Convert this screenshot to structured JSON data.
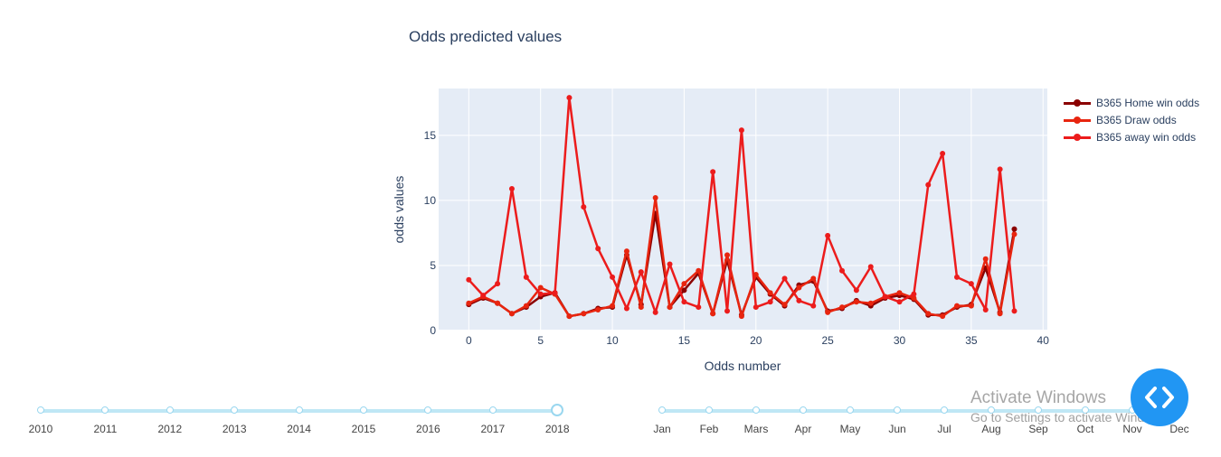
{
  "chart_data": {
    "type": "line",
    "title": "Odds predicted values",
    "xlabel": "Odds number",
    "ylabel": "odds values",
    "xlim": [
      -2.1,
      40.3
    ],
    "ylim": [
      0,
      18.6
    ],
    "xticks": [
      0,
      5,
      10,
      15,
      20,
      25,
      30,
      35,
      40
    ],
    "yticks": [
      0,
      5,
      10,
      15
    ],
    "grid": true,
    "legend_position": "right",
    "x": [
      0,
      1,
      2,
      3,
      4,
      5,
      6,
      7,
      8,
      9,
      10,
      11,
      12,
      13,
      14,
      15,
      16,
      17,
      18,
      19,
      20,
      21,
      22,
      23,
      24,
      25,
      26,
      27,
      28,
      29,
      30,
      31,
      32,
      33,
      34,
      35,
      36,
      37,
      38
    ],
    "series": [
      {
        "name": "B365 Home win odds",
        "color": "#8b0000",
        "values": [
          2.0,
          2.5,
          2.1,
          1.3,
          1.8,
          2.6,
          2.9,
          1.1,
          1.3,
          1.7,
          1.8,
          5.8,
          2.0,
          9.0,
          1.8,
          3.1,
          4.4,
          1.3,
          5.4,
          1.2,
          4.1,
          2.8,
          1.9,
          3.5,
          3.8,
          1.5,
          1.7,
          2.3,
          1.9,
          2.5,
          2.7,
          2.4,
          1.2,
          1.2,
          1.8,
          2.0,
          4.8,
          1.4,
          7.8
        ]
      },
      {
        "name": "B365 Draw odds",
        "color": "#e8250f",
        "values": [
          2.1,
          2.6,
          2.1,
          1.3,
          1.9,
          3.3,
          2.8,
          1.1,
          1.3,
          1.6,
          1.9,
          6.1,
          1.8,
          10.2,
          1.8,
          3.6,
          4.6,
          1.3,
          5.8,
          1.1,
          4.3,
          2.9,
          2.0,
          3.3,
          4.0,
          1.4,
          1.8,
          2.2,
          2.1,
          2.6,
          2.9,
          2.5,
          1.3,
          1.1,
          1.9,
          1.9,
          5.5,
          1.3,
          7.4
        ]
      },
      {
        "name": "B365 away win odds",
        "color": "#ec1c1c",
        "values": [
          3.9,
          2.7,
          3.6,
          10.9,
          4.1,
          2.8,
          2.9,
          17.9,
          9.5,
          6.3,
          4.1,
          1.7,
          4.5,
          1.4,
          5.1,
          2.2,
          1.8,
          12.2,
          1.5,
          15.4,
          1.8,
          2.2,
          4.0,
          2.3,
          1.9,
          7.3,
          4.6,
          3.1,
          4.9,
          2.6,
          2.2,
          2.8,
          11.2,
          13.6,
          4.1,
          3.6,
          1.6,
          12.4,
          1.5
        ]
      }
    ]
  },
  "year_slider": {
    "labels": [
      "2010",
      "2011",
      "2012",
      "2013",
      "2014",
      "2015",
      "2016",
      "2017",
      "2018"
    ],
    "selected": "2018"
  },
  "month_slider": {
    "labels": [
      "Jan",
      "Feb",
      "Mars",
      "Apr",
      "May",
      "Jun",
      "Jul",
      "Aug",
      "Sep",
      "Oct",
      "Nov",
      "Dec"
    ]
  },
  "watermark": {
    "title": "Activate Windows",
    "subtitle": "Go to Settings to activate Windows."
  },
  "fab_icon": "code-icon"
}
